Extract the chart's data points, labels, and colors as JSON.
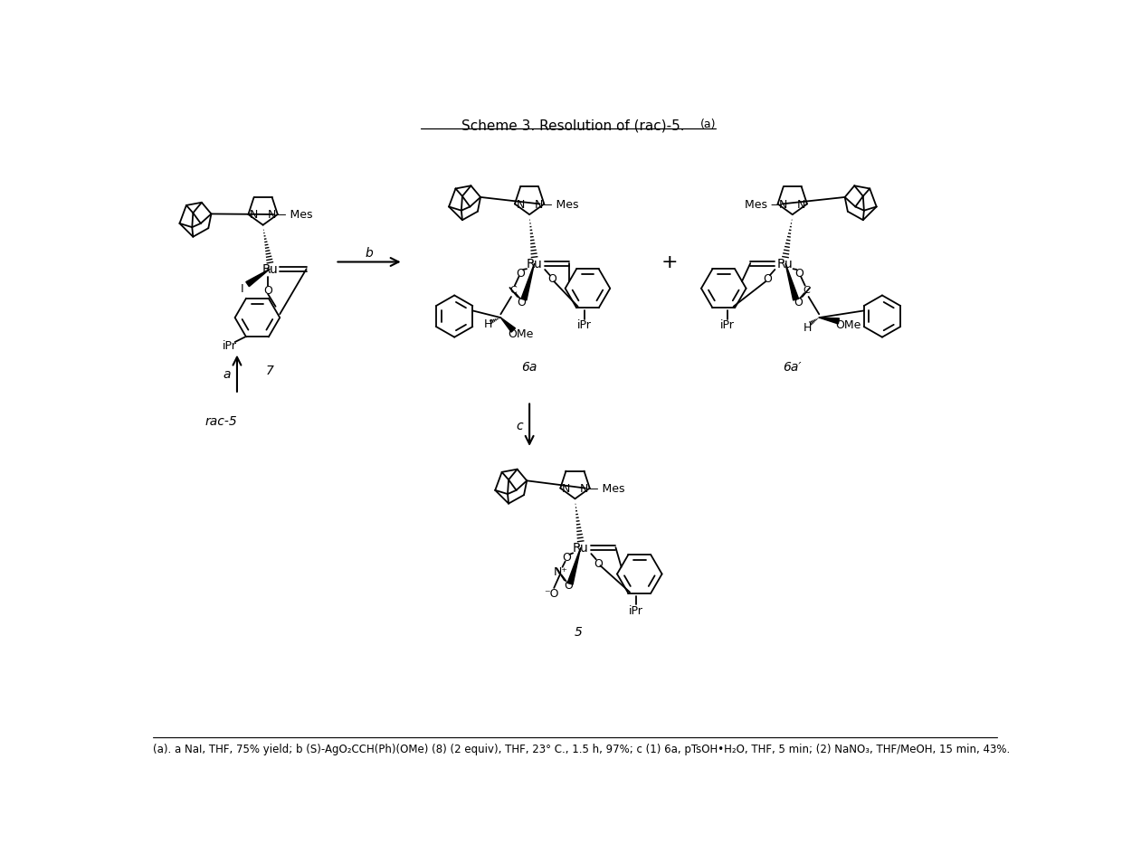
{
  "title": "Scheme 3. Resolution of (rac)-5.",
  "title_super": "(a)",
  "footnote": "(a). a NaI, THF, 75% yield; b (S)-AgO₂CCH(Ph)(OMe) (8) (2 equiv), THF, 23° C., 1.5 h, 97%; c (1) 6a, pTsOH•H₂O, THF, 5 min; (2) NaNO₃, THF/MeOH, 15 min, 43%.",
  "bg": "#ffffff",
  "fg": "#000000",
  "lw": 1.3,
  "afs": 9,
  "tfs": 11,
  "lfs": 10,
  "ffs": 8.5
}
